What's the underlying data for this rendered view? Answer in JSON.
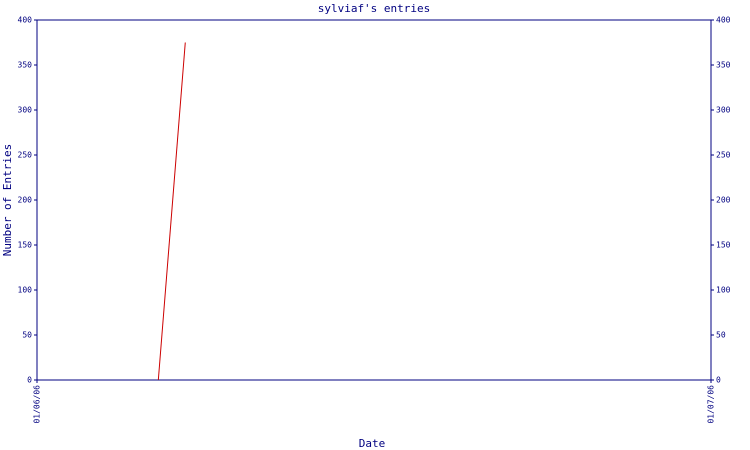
{
  "chart_data": {
    "type": "line",
    "title": "sylviaf's entries",
    "x_label": "Date",
    "y_label": "Number of Entries",
    "x": [
      0.18,
      0.22
    ],
    "series": [
      {
        "name": "sylviaf",
        "color": "#cc0000",
        "values": [
          0,
          375
        ]
      }
    ],
    "xlim": [
      0,
      1
    ],
    "xticks": [
      {
        "value": 0,
        "label": "01/06/06"
      },
      {
        "value": 1,
        "label": "01/07/06"
      }
    ],
    "ylim": [
      0,
      400
    ],
    "yticks": [
      0,
      50,
      100,
      150,
      200,
      250,
      300,
      350,
      400
    ],
    "axis_color": "#000080",
    "right_axis_ticks": true
  }
}
